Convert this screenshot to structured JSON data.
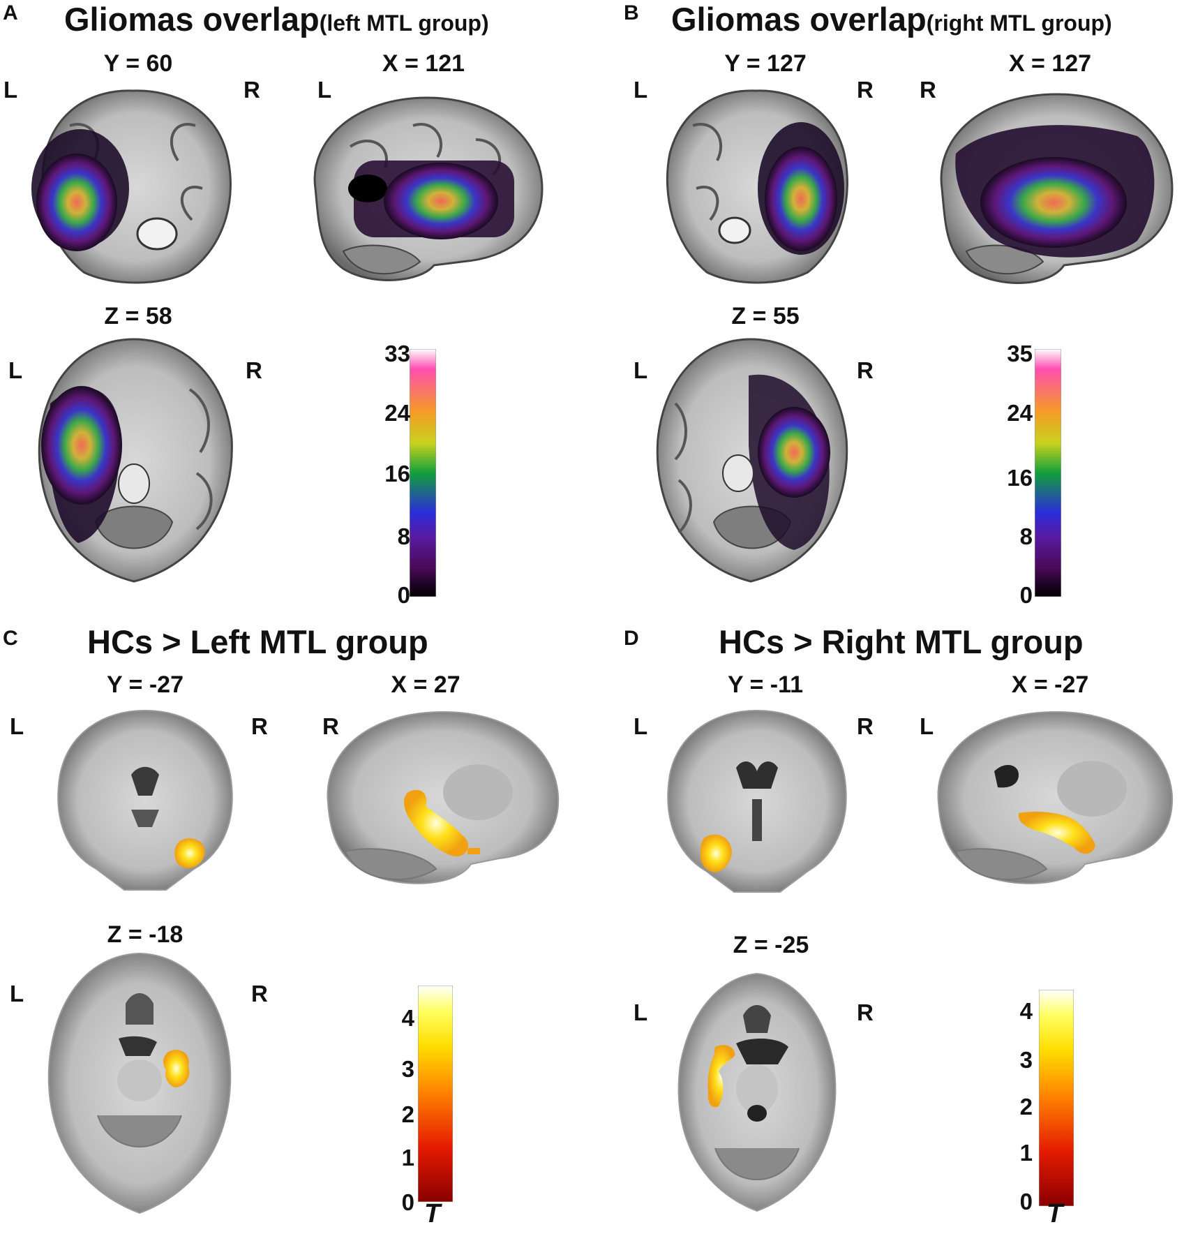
{
  "panels": {
    "A": {
      "letter": "A",
      "title_main": "Gliomas overlap",
      "title_sub": "(left MTL group)",
      "views": [
        {
          "coord": "Y = 60",
          "left": "L",
          "right": "R"
        },
        {
          "coord": "X = 121",
          "left": "L"
        },
        {
          "coord": "Z = 58",
          "left": "L",
          "right": "R"
        }
      ],
      "colorbar": {
        "ticks": [
          "33",
          "24",
          "16",
          "8",
          "0"
        ],
        "min": 0,
        "max": 33
      }
    },
    "B": {
      "letter": "B",
      "title_main": "Gliomas overlap",
      "title_sub": "(right MTL group)",
      "views": [
        {
          "coord": "Y = 127",
          "left": "L",
          "right": "R"
        },
        {
          "coord": "X = 127",
          "left": "R"
        },
        {
          "coord": "Z = 55",
          "left": "L",
          "right": "R"
        }
      ],
      "colorbar": {
        "ticks": [
          "35",
          "24",
          "16",
          "8",
          "0"
        ],
        "min": 0,
        "max": 35
      }
    },
    "C": {
      "letter": "C",
      "title_main": "HCs > Left MTL group",
      "views": [
        {
          "coord": "Y = -27",
          "left": "L",
          "right": "R"
        },
        {
          "coord": "X = 27",
          "left": "R"
        },
        {
          "coord": "Z = -18",
          "left": "L",
          "right": "R"
        }
      ],
      "colorbar": {
        "ticks": [
          "4",
          "3",
          "2",
          "1",
          "0"
        ],
        "label": "T"
      }
    },
    "D": {
      "letter": "D",
      "title_main": "HCs > Right MTL group",
      "views": [
        {
          "coord": "Y = -11",
          "left": "L",
          "right": "R"
        },
        {
          "coord": "X = -27",
          "left": "L"
        },
        {
          "coord": "Z = -25",
          "left": "L",
          "right": "R"
        }
      ],
      "colorbar": {
        "ticks": [
          "4",
          "3",
          "2",
          "1",
          "0"
        ],
        "label": "T"
      }
    }
  },
  "colormaps": {
    "overlap": [
      "#000000",
      "#5a0a6e",
      "#3a2bd6",
      "#12a03c",
      "#c8d21e",
      "#f59a28",
      "#ff4fb0",
      "#ffffff"
    ],
    "tstat": [
      "#8a0000",
      "#e41a00",
      "#ff7a00",
      "#ffd000",
      "#ffff40",
      "#ffffff"
    ]
  }
}
